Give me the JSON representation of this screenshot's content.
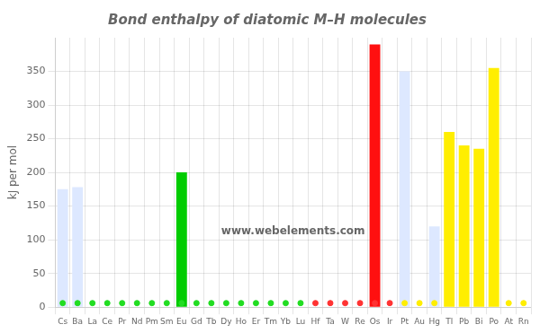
{
  "chart_data": {
    "type": "bar",
    "title": "Bond enthalpy of diatomic M–H molecules",
    "ylabel": "kJ per mol",
    "categories": [
      "Cs",
      "Ba",
      "La",
      "Ce",
      "Pr",
      "Nd",
      "Pm",
      "Sm",
      "Eu",
      "Gd",
      "Tb",
      "Dy",
      "Ho",
      "Er",
      "Tm",
      "Yb",
      "Lu",
      "Hf",
      "Ta",
      "W",
      "Re",
      "Os",
      "Ir",
      "Pt",
      "Au",
      "Hg",
      "Tl",
      "Pb",
      "Bi",
      "Po",
      "At",
      "Rn"
    ],
    "series": [
      {
        "type": "bar",
        "values": [
          175,
          178,
          0,
          0,
          0,
          0,
          0,
          0,
          200,
          0,
          0,
          0,
          0,
          0,
          0,
          0,
          0,
          0,
          0,
          0,
          0,
          390,
          0,
          350,
          0,
          120,
          260,
          240,
          235,
          355,
          0,
          0
        ],
        "colors": [
          "#dde8ff",
          "#dde8ff",
          null,
          null,
          null,
          null,
          null,
          null,
          "#00cc00",
          null,
          null,
          null,
          null,
          null,
          null,
          null,
          null,
          null,
          null,
          null,
          null,
          "#ff1010",
          null,
          "#dde8ff",
          null,
          "#dde8ff",
          "#ffee00",
          "#ffee00",
          "#ffee00",
          "#ffee00",
          null,
          null
        ]
      },
      {
        "type": "scatter",
        "marker": "circle",
        "values": [
          6,
          6,
          6,
          6,
          6,
          6,
          6,
          6,
          6,
          6,
          6,
          6,
          6,
          6,
          6,
          6,
          6,
          6,
          6,
          6,
          6,
          6,
          6,
          6,
          6,
          6,
          6,
          6,
          6,
          6,
          6,
          6
        ],
        "colors": [
          "#22dd22",
          "#22dd22",
          "#22dd22",
          "#22dd22",
          "#22dd22",
          "#22dd22",
          "#22dd22",
          "#22dd22",
          "#22dd22",
          "#22dd22",
          "#22dd22",
          "#22dd22",
          "#22dd22",
          "#22dd22",
          "#22dd22",
          "#22dd22",
          "#22dd22",
          "#ff3333",
          "#ff3333",
          "#ff3333",
          "#ff3333",
          "#ff3333",
          "#ff3333",
          "#ffee00",
          "#ffee00",
          "#ffee00",
          "#ffee00",
          "#ffee00",
          "#ffee00",
          "#ffee00",
          "#ffee00",
          "#ffee00"
        ]
      }
    ],
    "annotations": [
      "www.webelements.com"
    ],
    "ylim": [
      0,
      400
    ],
    "yticks": [
      0,
      50,
      100,
      150,
      200,
      250,
      300,
      350
    ],
    "grid": true
  }
}
